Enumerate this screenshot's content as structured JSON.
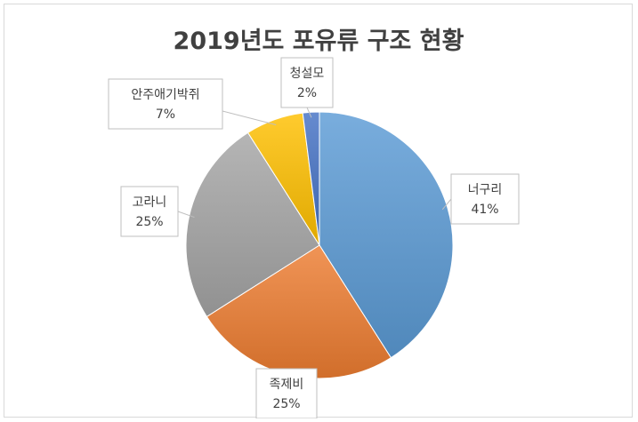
{
  "chart_data": {
    "type": "pie",
    "title": "2019년도 포유류 구조 현황",
    "categories": [
      "너구리",
      "족제비",
      "고라니",
      "안주애기박쥐",
      "청설모"
    ],
    "values": [
      41,
      25,
      25,
      7,
      2
    ],
    "data_labels": [
      "41%",
      "25%",
      "25%",
      "7%",
      "2%"
    ],
    "colors": [
      "#5b9bd5",
      "#ed7d31",
      "#a5a5a5",
      "#ffc000",
      "#4472c4"
    ],
    "start_angle_deg": 0,
    "direction": "clockwise",
    "legend": "none",
    "label_style": "callout-with-leader"
  }
}
